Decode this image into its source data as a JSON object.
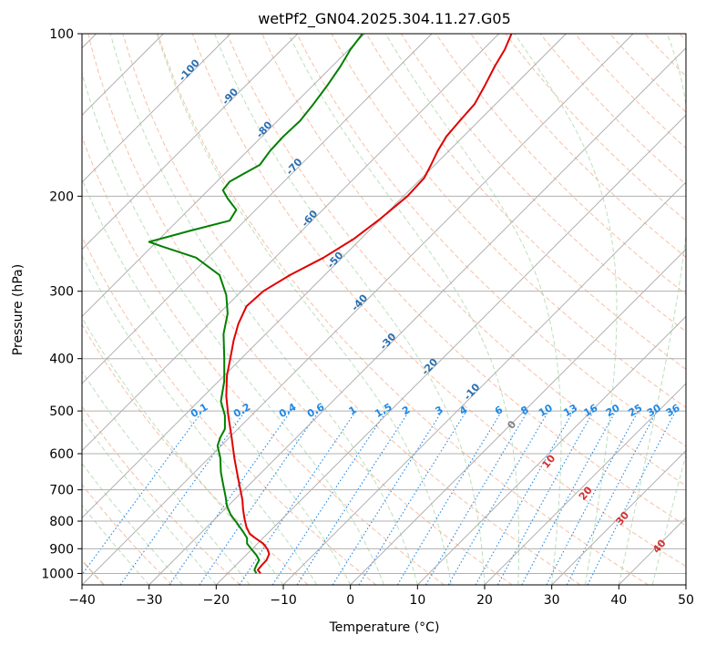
{
  "chart_data": {
    "type": "line",
    "title": "wetPf2_GN04.2025.304.11.27.G05",
    "xlabel": "Temperature (°C)",
    "ylabel": "Pressure (hPa)",
    "xlim": [
      -40,
      50
    ],
    "ylim": [
      1050,
      100
    ],
    "y_scale": "log",
    "grid": true,
    "x_ticks": [
      -40,
      -30,
      -20,
      -10,
      0,
      10,
      20,
      30,
      40,
      50
    ],
    "x_tick_labels": [
      "−40",
      "−30",
      "−20",
      "−10",
      "0",
      "10",
      "20",
      "30",
      "40",
      "50"
    ],
    "y_ticks": [
      1000,
      900,
      800,
      700,
      600,
      500,
      400,
      300,
      200,
      100
    ],
    "y_tick_labels": [
      "1000",
      "900",
      "800",
      "700",
      "600",
      "500",
      "400",
      "300",
      "200",
      "100"
    ],
    "series": [
      {
        "color": "#e00000",
        "points": [
          [
            -13.4,
            1000
          ],
          [
            -13.8,
            985
          ],
          [
            -13.2,
            965
          ],
          [
            -12.5,
            945
          ],
          [
            -12.1,
            920
          ],
          [
            -12.4,
            900
          ],
          [
            -13.0,
            880
          ],
          [
            -14.2,
            860
          ],
          [
            -15.0,
            845
          ],
          [
            -15.5,
            820
          ],
          [
            -15.8,
            790
          ],
          [
            -16.0,
            760
          ],
          [
            -16.1,
            730
          ],
          [
            -16.4,
            700
          ],
          [
            -16.8,
            660
          ],
          [
            -17.3,
            610
          ],
          [
            -17.7,
            560
          ],
          [
            -18.2,
            510
          ],
          [
            -18.5,
            470
          ],
          [
            -18.4,
            430
          ],
          [
            -17.9,
            400
          ],
          [
            -17.4,
            370
          ],
          [
            -16.7,
            345
          ],
          [
            -15.5,
            320
          ],
          [
            -13.0,
            300
          ],
          [
            -9.0,
            280
          ],
          [
            -4.0,
            260
          ],
          [
            0.5,
            240
          ],
          [
            4.5,
            220
          ],
          [
            8.5,
            200
          ],
          [
            11.0,
            185
          ],
          [
            12.0,
            175
          ],
          [
            13.0,
            165
          ],
          [
            14.3,
            155
          ],
          [
            16.3,
            145
          ],
          [
            18.5,
            135
          ],
          [
            20.0,
            125
          ],
          [
            21.5,
            115
          ],
          [
            23.0,
            107
          ],
          [
            24.0,
            100
          ]
        ]
      },
      {
        "color": "#008000",
        "points": [
          [
            -14.0,
            1000
          ],
          [
            -14.3,
            985
          ],
          [
            -14.0,
            965
          ],
          [
            -13.6,
            945
          ],
          [
            -14.0,
            925
          ],
          [
            -14.8,
            900
          ],
          [
            -15.4,
            880
          ],
          [
            -15.4,
            860
          ],
          [
            -15.9,
            840
          ],
          [
            -16.8,
            810
          ],
          [
            -17.8,
            780
          ],
          [
            -18.4,
            750
          ],
          [
            -18.6,
            720
          ],
          [
            -18.9,
            690
          ],
          [
            -19.3,
            650
          ],
          [
            -19.4,
            610
          ],
          [
            -19.8,
            580
          ],
          [
            -19.4,
            560
          ],
          [
            -18.7,
            540
          ],
          [
            -18.7,
            510
          ],
          [
            -19.3,
            480
          ],
          [
            -18.8,
            440
          ],
          [
            -18.8,
            400
          ],
          [
            -18.9,
            360
          ],
          [
            -18.3,
            330
          ],
          [
            -18.5,
            305
          ],
          [
            -19.5,
            280
          ],
          [
            -23.0,
            260
          ],
          [
            -28.0,
            248
          ],
          [
            -30.0,
            243
          ],
          [
            -24.0,
            232
          ],
          [
            -18.0,
            222
          ],
          [
            -17.0,
            212
          ],
          [
            -18.3,
            202
          ],
          [
            -19.0,
            195
          ],
          [
            -18.0,
            188
          ],
          [
            -16.0,
            182
          ],
          [
            -13.5,
            175
          ],
          [
            -12.0,
            165
          ],
          [
            -10.0,
            155
          ],
          [
            -7.5,
            145
          ],
          [
            -5.5,
            135
          ],
          [
            -3.5,
            125
          ],
          [
            -1.5,
            115
          ],
          [
            0.0,
            107
          ],
          [
            1.8,
            100
          ]
        ]
      }
    ],
    "mixing_ratio_labels": [
      "0.1",
      "0.2",
      "0.4",
      "0.6",
      "1",
      "1.5",
      "2",
      "3",
      "4",
      "6",
      "8",
      "10",
      "13",
      "16",
      "20",
      "25",
      "30",
      "36"
    ],
    "dry_adiabat_labels": [
      "-100",
      "-90",
      "-80",
      "-70",
      "-60",
      "-50",
      "-40",
      "-30",
      "-20",
      "-10"
    ],
    "moist_adiabat_labels": [
      "0",
      "10",
      "20",
      "30",
      "40"
    ]
  }
}
